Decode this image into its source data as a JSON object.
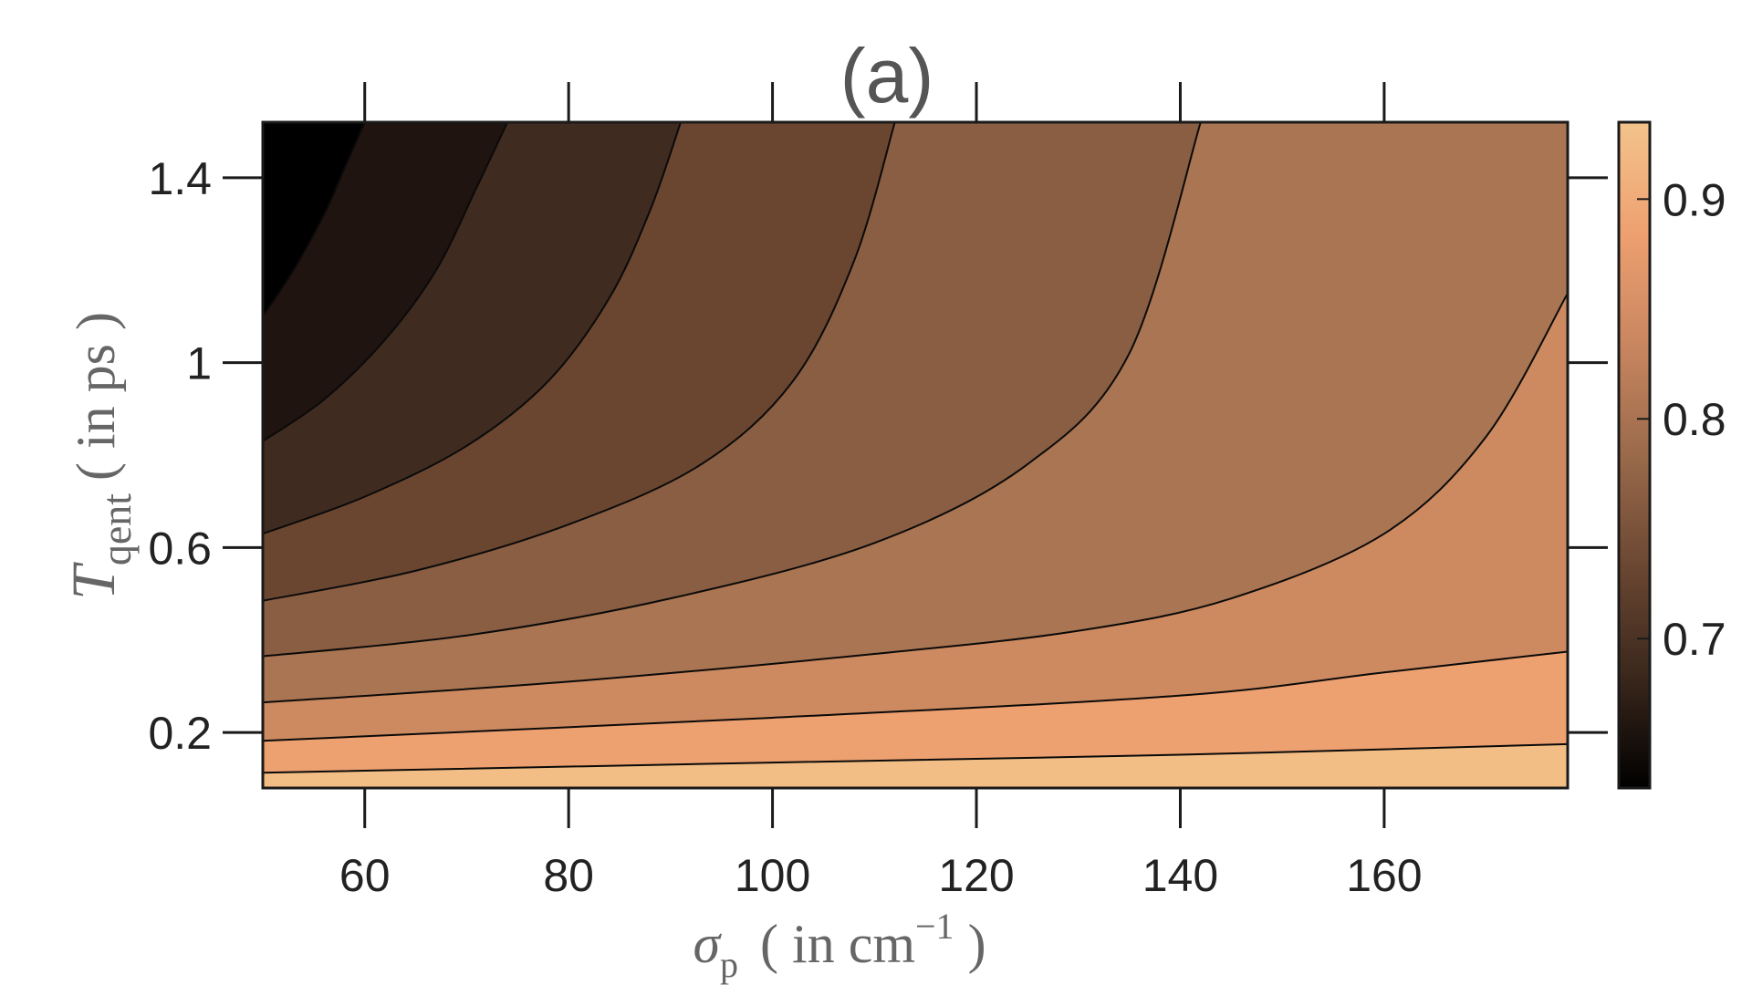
{
  "chart_data": {
    "type": "contour",
    "panel_label": "(a)",
    "xlabel": {
      "symbol": "σ",
      "subscript": "p",
      "unit_prefix": "( in cm",
      "superscript": "−1",
      "unit_suffix": " )"
    },
    "ylabel": {
      "symbol": "T",
      "subscript": "qent",
      "unit": "( in ps )"
    },
    "xlim": [
      50,
      178
    ],
    "ylim": [
      0.08,
      1.52
    ],
    "x_ticks": [
      60,
      80,
      100,
      120,
      140,
      160
    ],
    "x_tick_labels": [
      "60",
      "80",
      "100",
      "120",
      "140",
      "160"
    ],
    "y_ticks": [
      0.2,
      0.6,
      1.0,
      1.4
    ],
    "y_tick_labels": [
      "0.2",
      "0.6",
      "1",
      "1.4"
    ],
    "colorbar": {
      "range": [
        0.632,
        0.935
      ],
      "ticks": [
        0.7,
        0.8,
        0.9
      ],
      "tick_labels": [
        "0.7",
        "0.8",
        "0.9"
      ],
      "colors": [
        "#000000",
        "#1f140f",
        "#3f2b20",
        "#6a4630",
        "#8a5e43",
        "#a97552",
        "#cd8a60",
        "#eda070",
        "#f3be85"
      ]
    },
    "contour_lines": [
      {
        "points": [
          [
            50,
            1.1
          ],
          [
            53,
            1.2
          ],
          [
            56,
            1.32
          ],
          [
            58,
            1.42
          ],
          [
            60,
            1.52
          ]
        ]
      },
      {
        "points": [
          [
            50,
            0.83
          ],
          [
            56,
            0.92
          ],
          [
            62,
            1.05
          ],
          [
            67,
            1.2
          ],
          [
            71,
            1.38
          ],
          [
            74,
            1.52
          ]
        ]
      },
      {
        "points": [
          [
            50,
            0.63
          ],
          [
            60,
            0.71
          ],
          [
            70,
            0.82
          ],
          [
            78,
            0.96
          ],
          [
            84,
            1.14
          ],
          [
            88,
            1.33
          ],
          [
            91,
            1.52
          ]
        ]
      },
      {
        "points": [
          [
            50,
            0.485
          ],
          [
            65,
            0.55
          ],
          [
            80,
            0.65
          ],
          [
            93,
            0.78
          ],
          [
            102,
            0.96
          ],
          [
            108,
            1.22
          ],
          [
            112,
            1.52
          ]
        ]
      },
      {
        "points": [
          [
            50,
            0.365
          ],
          [
            70,
            0.41
          ],
          [
            90,
            0.49
          ],
          [
            110,
            0.61
          ],
          [
            125,
            0.78
          ],
          [
            135,
            1.02
          ],
          [
            142,
            1.52
          ]
        ]
      },
      {
        "points": [
          [
            50,
            0.265
          ],
          [
            80,
            0.31
          ],
          [
            110,
            0.37
          ],
          [
            130,
            0.42
          ],
          [
            145,
            0.49
          ],
          [
            160,
            0.63
          ],
          [
            170,
            0.84
          ],
          [
            178,
            1.15
          ]
        ]
      },
      {
        "points": [
          [
            50,
            0.182
          ],
          [
            100,
            0.232
          ],
          [
            140,
            0.28
          ],
          [
            160,
            0.33
          ],
          [
            178,
            0.375
          ]
        ]
      },
      {
        "points": [
          [
            50,
            0.113
          ],
          [
            100,
            0.135
          ],
          [
            140,
            0.152
          ],
          [
            178,
            0.175
          ]
        ]
      }
    ]
  }
}
